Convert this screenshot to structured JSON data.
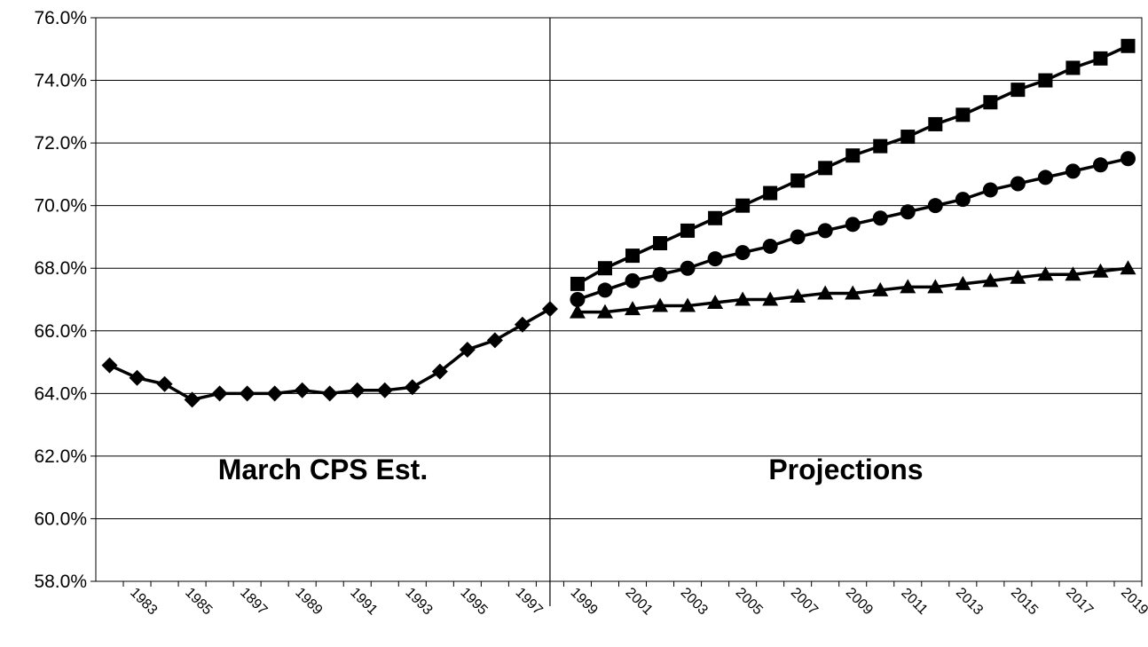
{
  "chart_data": {
    "type": "line",
    "categories": [
      null,
      "1983",
      null,
      "1985",
      null,
      "1897",
      null,
      "1989",
      null,
      "1991",
      null,
      "1993",
      null,
      "1995",
      null,
      "1997",
      null,
      "1999",
      null,
      "2001",
      null,
      "2003",
      null,
      "2005",
      null,
      "2007",
      null,
      "2009",
      null,
      "2011",
      null,
      "2013",
      null,
      "2015",
      null,
      "2017",
      null,
      "2019"
    ],
    "series": [
      {
        "color": "#000000",
        "marker": "diamond",
        "values": [
          64.9,
          64.5,
          64.3,
          63.8,
          64.0,
          64.0,
          64.0,
          64.1,
          64.0,
          64.1,
          64.1,
          64.2,
          64.7,
          65.4,
          65.7,
          66.2,
          66.7,
          null,
          null,
          null,
          null,
          null,
          null,
          null,
          null,
          null,
          null,
          null,
          null,
          null,
          null,
          null,
          null,
          null,
          null,
          null,
          null,
          null
        ]
      },
      {
        "color": "#000000",
        "marker": "square",
        "values": [
          null,
          null,
          null,
          null,
          null,
          null,
          null,
          null,
          null,
          null,
          null,
          null,
          null,
          null,
          null,
          null,
          null,
          67.5,
          68.0,
          68.4,
          68.8,
          69.2,
          69.6,
          70.0,
          70.4,
          70.8,
          71.2,
          71.6,
          71.9,
          72.2,
          72.6,
          72.9,
          73.3,
          73.7,
          74.0,
          74.4,
          74.7,
          75.1
        ]
      },
      {
        "color": "#000000",
        "marker": "circle",
        "values": [
          null,
          null,
          null,
          null,
          null,
          null,
          null,
          null,
          null,
          null,
          null,
          null,
          null,
          null,
          null,
          null,
          null,
          67.0,
          67.3,
          67.6,
          67.8,
          68.0,
          68.3,
          68.5,
          68.7,
          69.0,
          69.2,
          69.4,
          69.6,
          69.8,
          70.0,
          70.2,
          70.5,
          70.7,
          70.9,
          71.1,
          71.3,
          71.5
        ]
      },
      {
        "color": "#000000",
        "marker": "triangle",
        "values": [
          null,
          null,
          null,
          null,
          null,
          null,
          null,
          null,
          null,
          null,
          null,
          null,
          null,
          null,
          null,
          null,
          null,
          66.6,
          66.6,
          66.7,
          66.8,
          66.8,
          66.9,
          67.0,
          67.0,
          67.1,
          67.2,
          67.2,
          67.3,
          67.4,
          67.4,
          67.5,
          67.6,
          67.7,
          67.8,
          67.8,
          67.9,
          68.0
        ]
      }
    ],
    "ylim": [
      58,
      76
    ],
    "yticks": [
      {
        "value": 58,
        "label": "58.0%"
      },
      {
        "value": 60,
        "label": "60.0%"
      },
      {
        "value": 62,
        "label": "62.0%"
      },
      {
        "value": 64,
        "label": "64.0%"
      },
      {
        "value": 66,
        "label": "66.0%"
      },
      {
        "value": 68,
        "label": "68.0%"
      },
      {
        "value": 70,
        "label": "70.0%"
      },
      {
        "value": 72,
        "label": "72.0%"
      },
      {
        "value": 74,
        "label": "74.0%"
      },
      {
        "value": 76,
        "label": "76.0%"
      }
    ],
    "grid": true,
    "annotations": [
      "March CPS Est.",
      "Projections"
    ]
  }
}
